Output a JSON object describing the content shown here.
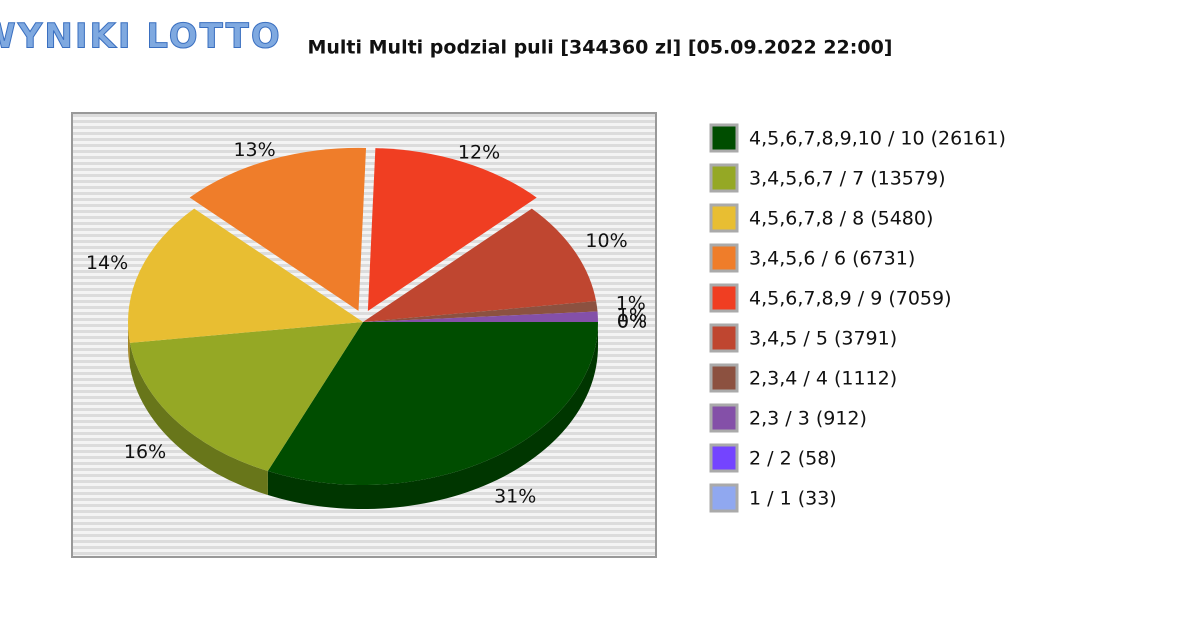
{
  "logo_text": "WYNIKI LOTTO",
  "chart_data": {
    "type": "pie",
    "title": "Multi Multi podzial puli [344360 zl] [05.09.2022 22:00]",
    "categories": [
      "4,5,6,7,8,9,10 / 10 (26161)",
      "3,4,5,6,7 / 7 (13579)",
      "4,5,6,7,8 / 8 (5480)",
      "3,4,5,6 / 6 (6731)",
      "4,5,6,7,8,9 / 9 (7059)",
      "3,4,5 / 5 (3791)",
      "2,3,4 / 4 (1112)",
      "2,3 / 3 (912)",
      "2 / 2 (58)",
      "1 / 1 (33)"
    ],
    "values": [
      31,
      16,
      14,
      13,
      12,
      10,
      1,
      1,
      0,
      0
    ],
    "value_labels": [
      "31%",
      "16%",
      "14%",
      "13%",
      "12%",
      "10%",
      "1%",
      "1%",
      "0%",
      "0%"
    ],
    "colors": [
      "#004d00",
      "#95a825",
      "#e8be32",
      "#ef7d2a",
      "#f03e22",
      "#bf4630",
      "#8c5140",
      "#8450a8",
      "#7444ff",
      "#90a8f0"
    ],
    "legend": "right"
  }
}
